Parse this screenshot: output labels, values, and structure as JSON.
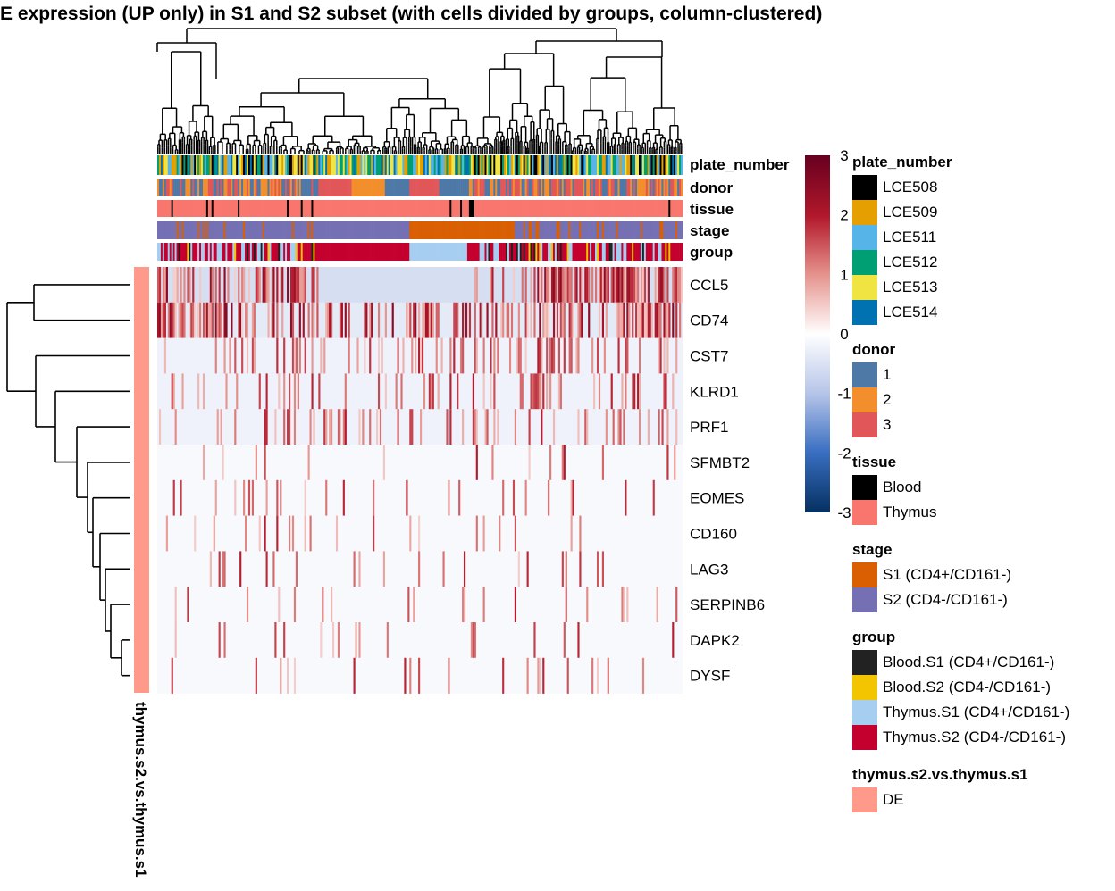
{
  "title": "E expression (UP only) in S1 and S2 subset (with cells divided by groups, column-clustered)",
  "chart_data": {
    "type": "heatmap",
    "title": "E expression (UP only) in S1 and S2 subset (with cells divided by groups, column-clustered)",
    "rows": [
      "CCL5",
      "CD74",
      "CST7",
      "KLRD1",
      "PRF1",
      "SFMBT2",
      "EOMES",
      "CD160",
      "LAG3",
      "SERPINB6",
      "DAPK2",
      "DYSF"
    ],
    "row_annotation": {
      "name": "thymus.s2.vs.thymus.s1",
      "value": "DE"
    },
    "column_annotations": [
      "plate_number",
      "donor",
      "tissue",
      "stage",
      "group"
    ],
    "color_scale": {
      "min": -3,
      "max": 3,
      "ticks": [
        3,
        2,
        1,
        0,
        -1,
        -2,
        -3
      ]
    }
  },
  "legends": {
    "plate_number": {
      "title": "plate_number",
      "items": [
        {
          "label": "LCE508",
          "color": "#000000"
        },
        {
          "label": "LCE509",
          "color": "#E69F00"
        },
        {
          "label": "LCE511",
          "color": "#56B4E9"
        },
        {
          "label": "LCE512",
          "color": "#009E73"
        },
        {
          "label": "LCE513",
          "color": "#F0E442"
        },
        {
          "label": "LCE514",
          "color": "#0072B2"
        }
      ]
    },
    "donor": {
      "title": "donor",
      "items": [
        {
          "label": "1",
          "color": "#4E79A7"
        },
        {
          "label": "2",
          "color": "#F28E2B"
        },
        {
          "label": "3",
          "color": "#E15759"
        }
      ]
    },
    "tissue": {
      "title": "tissue",
      "items": [
        {
          "label": "Blood",
          "color": "#000000"
        },
        {
          "label": "Thymus",
          "color": "#F8766D"
        }
      ]
    },
    "stage": {
      "title": "stage",
      "items": [
        {
          "label": "S1 (CD4+/CD161-)",
          "color": "#D95F02"
        },
        {
          "label": "S2 (CD4-/CD161-)",
          "color": "#7570B3"
        }
      ]
    },
    "group": {
      "title": "group",
      "items": [
        {
          "label": "Blood.S1 (CD4+/CD161-)",
          "color": "#222222"
        },
        {
          "label": "Blood.S2 (CD4-/CD161-)",
          "color": "#F2C500"
        },
        {
          "label": "Thymus.S1 (CD4+/CD161-)",
          "color": "#A6CEF0"
        },
        {
          "label": "Thymus.S2 (CD4-/CD161-)",
          "color": "#C4002F"
        }
      ]
    },
    "row_group": {
      "title": "thymus.s2.vs.thymus.s1",
      "items": [
        {
          "label": "DE",
          "color": "#FF9A8A"
        }
      ]
    }
  }
}
